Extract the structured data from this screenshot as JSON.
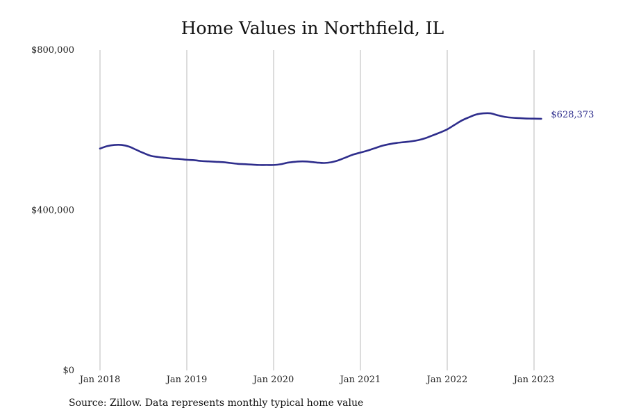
{
  "chart_data": {
    "type": "line",
    "title": "Home Values in Northfield, IL",
    "xlabel": "",
    "ylabel": "",
    "ylim": [
      0,
      800000
    ],
    "y_ticks": [
      {
        "value": 0,
        "label": "$0"
      },
      {
        "value": 400000,
        "label": "$400,000"
      },
      {
        "value": 800000,
        "label": "$800,000"
      }
    ],
    "x_ticks": [
      {
        "value": 2018.0,
        "label": "Jan 2018"
      },
      {
        "value": 2019.0,
        "label": "Jan 2019"
      },
      {
        "value": 2020.0,
        "label": "Jan 2020"
      },
      {
        "value": 2021.0,
        "label": "Jan 2021"
      },
      {
        "value": 2022.0,
        "label": "Jan 2022"
      },
      {
        "value": 2023.0,
        "label": "Jan 2023"
      }
    ],
    "xlim": [
      2018.0,
      2023.0833
    ],
    "grid": "vertical",
    "line_color": "#2e2d8c",
    "series": [
      {
        "x": [
          2018.0,
          2018.0833,
          2018.1667,
          2018.25,
          2018.3333,
          2018.4167,
          2018.5,
          2018.5833,
          2018.6667,
          2018.75,
          2018.8333,
          2018.9167,
          2019.0,
          2019.0833,
          2019.1667,
          2019.25,
          2019.3333,
          2019.4167,
          2019.5,
          2019.5833,
          2019.6667,
          2019.75,
          2019.8333,
          2019.9167,
          2020.0,
          2020.0833,
          2020.1667,
          2020.25,
          2020.3333,
          2020.4167,
          2020.5,
          2020.5833,
          2020.6667,
          2020.75,
          2020.8333,
          2020.9167,
          2021.0,
          2021.0833,
          2021.1667,
          2021.25,
          2021.3333,
          2021.4167,
          2021.5,
          2021.5833,
          2021.6667,
          2021.75,
          2021.8333,
          2021.9167,
          2022.0,
          2022.0833,
          2022.1667,
          2022.25,
          2022.3333,
          2022.4167,
          2022.5,
          2022.5833,
          2022.6667,
          2022.75,
          2022.8333,
          2022.9167,
          2023.0,
          2023.0833
        ],
        "values": [
          554000,
          560000,
          563000,
          563000,
          559000,
          551000,
          543000,
          536000,
          533000,
          531000,
          529000,
          528000,
          526000,
          525000,
          523000,
          522000,
          521000,
          520000,
          518000,
          516000,
          515000,
          514000,
          513000,
          513000,
          513000,
          515000,
          519000,
          521000,
          522000,
          521000,
          519000,
          518000,
          520000,
          525000,
          532000,
          539000,
          544000,
          549000,
          555000,
          561000,
          565000,
          568000,
          570000,
          572000,
          575000,
          580000,
          587000,
          594000,
          602000,
          613000,
          624000,
          632000,
          639000,
          642000,
          642000,
          637000,
          633000,
          631000,
          630000,
          629000,
          628700,
          628373
        ],
        "end_label": "$628,373"
      }
    ]
  },
  "source_note": "Source: Zillow. Data represents monthly typical home value"
}
